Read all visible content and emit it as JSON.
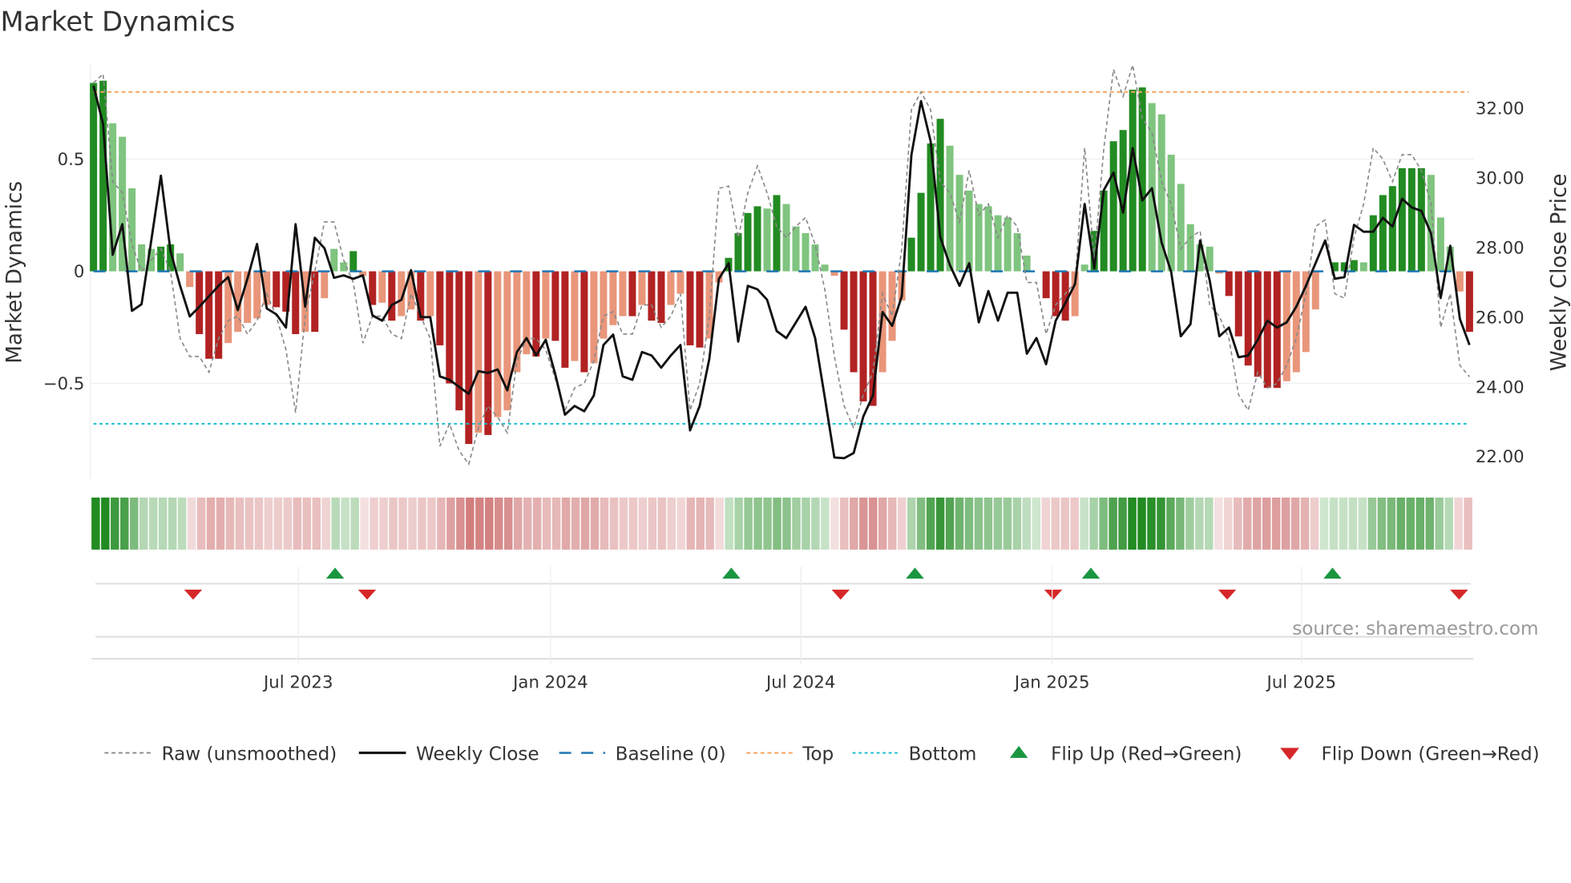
{
  "chart_data": {
    "type": "bar",
    "title": "Market Dynamics",
    "ylabel_left": "Market Dynamics",
    "ylabel_right": "Weekly Close Price",
    "ylim_left": [
      -0.93,
      0.93
    ],
    "ylim_right": [
      21.4,
      33.2
    ],
    "left_ticks": [
      {
        "v": 0.5,
        "label": "0.5"
      },
      {
        "v": 0,
        "label": "0"
      },
      {
        "v": -0.5,
        "label": "−0.5"
      }
    ],
    "right_ticks": [
      {
        "v": 32,
        "label": "32.00"
      },
      {
        "v": 30,
        "label": "30.00"
      },
      {
        "v": 28,
        "label": "28.00"
      },
      {
        "v": 26,
        "label": "26.00"
      },
      {
        "v": 24,
        "label": "24.00"
      },
      {
        "v": 22,
        "label": "22.00"
      }
    ],
    "x_start_week": 0,
    "x_ticks": [
      {
        "week": 21.2,
        "label": "Jul 2023"
      },
      {
        "week": 47.3,
        "label": "Jan 2024"
      },
      {
        "week": 73.2,
        "label": "Jul 2024"
      },
      {
        "week": 99.2,
        "label": "Jan 2025"
      },
      {
        "week": 125,
        "label": "Jul 2025"
      }
    ],
    "top_level": 0.8,
    "bottom_level": -0.68,
    "baseline": 0,
    "dynamics": [
      0.84,
      0.85,
      0.66,
      0.6,
      0.37,
      0.12,
      0.1,
      0.11,
      0.12,
      0.08,
      -0.07,
      -0.28,
      -0.39,
      -0.39,
      -0.32,
      -0.27,
      -0.23,
      -0.21,
      -0.15,
      -0.16,
      -0.18,
      -0.28,
      -0.27,
      -0.27,
      -0.12,
      0.1,
      0.04,
      0.09,
      -0.02,
      -0.15,
      -0.14,
      -0.22,
      -0.2,
      -0.17,
      -0.22,
      -0.2,
      -0.33,
      -0.5,
      -0.62,
      -0.77,
      -0.72,
      -0.73,
      -0.65,
      -0.62,
      -0.45,
      -0.37,
      -0.38,
      -0.3,
      -0.31,
      -0.43,
      -0.4,
      -0.45,
      -0.41,
      -0.3,
      -0.24,
      -0.2,
      -0.2,
      -0.15,
      -0.22,
      -0.23,
      -0.15,
      -0.1,
      -0.33,
      -0.34,
      -0.3,
      -0.05,
      0.06,
      0.17,
      0.26,
      0.29,
      0.28,
      0.34,
      0.3,
      0.2,
      0.17,
      0.12,
      0.03,
      -0.02,
      -0.26,
      -0.45,
      -0.58,
      -0.6,
      -0.45,
      -0.31,
      -0.13,
      0.15,
      0.35,
      0.57,
      0.68,
      0.56,
      0.43,
      0.36,
      0.3,
      0.29,
      0.25,
      0.24,
      0.17,
      0.07,
      0.0,
      -0.12,
      -0.2,
      -0.22,
      -0.2,
      0.03,
      0.18,
      0.36,
      0.58,
      0.63,
      0.81,
      0.82,
      0.75,
      0.7,
      0.52,
      0.39,
      0.21,
      0.12,
      0.11,
      -0.01,
      -0.11,
      -0.29,
      -0.42,
      -0.47,
      -0.52,
      -0.52,
      -0.49,
      -0.45,
      -0.36,
      -0.17,
      0.0,
      0.04,
      0.04,
      0.05,
      0.04,
      0.25,
      0.34,
      0.38,
      0.46,
      0.46,
      0.46,
      0.43,
      0.24,
      0.11,
      -0.09,
      -0.27
    ],
    "raw": [
      0.84,
      0.88,
      0.4,
      0.35,
      0.12,
      0.0,
      0.05,
      0.1,
      0.0,
      -0.3,
      -0.38,
      -0.38,
      -0.45,
      -0.3,
      -0.22,
      -0.2,
      -0.28,
      -0.22,
      -0.1,
      -0.2,
      -0.35,
      -0.63,
      -0.2,
      0.0,
      0.22,
      0.22,
      0.05,
      -0.05,
      -0.32,
      -0.2,
      -0.2,
      -0.28,
      -0.3,
      -0.1,
      -0.2,
      -0.3,
      -0.78,
      -0.68,
      -0.8,
      -0.86,
      -0.7,
      -0.6,
      -0.65,
      -0.72,
      -0.4,
      -0.3,
      -0.3,
      -0.35,
      -0.48,
      -0.62,
      -0.52,
      -0.5,
      -0.4,
      -0.2,
      -0.18,
      -0.28,
      -0.28,
      -0.15,
      -0.15,
      -0.25,
      -0.2,
      -0.1,
      -0.62,
      -0.5,
      -0.2,
      0.37,
      0.38,
      0.15,
      0.35,
      0.47,
      0.35,
      0.2,
      0.15,
      0.2,
      0.24,
      0.12,
      -0.08,
      -0.38,
      -0.6,
      -0.7,
      -0.55,
      -0.45,
      -0.1,
      -0.2,
      0.1,
      0.72,
      0.8,
      0.72,
      0.4,
      0.35,
      0.22,
      0.45,
      0.25,
      0.3,
      0.15,
      0.25,
      0.2,
      -0.05,
      -0.05,
      -0.28,
      -0.15,
      -0.1,
      -0.05,
      0.55,
      0.05,
      0.55,
      0.9,
      0.78,
      0.92,
      0.68,
      0.62,
      0.4,
      0.3,
      0.1,
      0.15,
      0.18,
      -0.15,
      -0.2,
      -0.3,
      -0.55,
      -0.62,
      -0.45,
      -0.52,
      -0.5,
      -0.42,
      -0.3,
      -0.1,
      0.2,
      0.23,
      -0.1,
      -0.12,
      0.15,
      0.3,
      0.55,
      0.5,
      0.4,
      0.52,
      0.52,
      0.45,
      0.3,
      -0.25,
      -0.1,
      -0.42,
      -0.47
    ],
    "weekly_close": [
      32.64,
      31.54,
      27.79,
      28.67,
      26.18,
      26.37,
      28.2,
      30.06,
      27.9,
      26.9,
      26.02,
      26.3,
      26.6,
      26.9,
      27.15,
      26.2,
      27.1,
      28.1,
      26.25,
      26.08,
      25.7,
      28.67,
      26.3,
      28.28,
      27.98,
      27.13,
      27.2,
      27.1,
      27.2,
      26.05,
      25.9,
      26.35,
      26.5,
      27.35,
      26.0,
      26.0,
      24.3,
      24.2,
      24.0,
      23.8,
      24.45,
      24.4,
      24.5,
      23.9,
      25.0,
      25.4,
      24.9,
      25.35,
      24.35,
      23.2,
      23.45,
      23.3,
      23.75,
      25.2,
      25.5,
      24.3,
      24.2,
      25.0,
      24.9,
      24.55,
      24.9,
      25.2,
      22.75,
      23.45,
      24.8,
      27.1,
      27.55,
      25.3,
      26.9,
      26.8,
      26.5,
      25.6,
      25.4,
      25.85,
      26.3,
      25.4,
      23.7,
      21.97,
      21.95,
      22.1,
      23.15,
      23.75,
      26.15,
      25.75,
      26.6,
      30.65,
      32.2,
      31.05,
      28.3,
      27.5,
      26.9,
      27.55,
      25.85,
      26.75,
      25.9,
      26.7,
      26.7,
      24.95,
      25.4,
      24.65,
      25.9,
      26.4,
      26.95,
      29.25,
      27.4,
      29.65,
      30.15,
      29.0,
      30.85,
      29.35,
      29.7,
      28.15,
      27.3,
      25.45,
      25.8,
      28.2,
      27.05,
      25.45,
      25.7,
      24.85,
      24.9,
      25.35,
      25.9,
      25.7,
      25.85,
      26.3,
      26.9,
      27.55,
      28.2,
      27.1,
      27.15,
      28.65,
      28.45,
      28.45,
      28.85,
      28.6,
      29.4,
      29.15,
      29.05,
      28.4,
      26.55,
      28.05,
      25.95,
      25.2
    ],
    "flip_up_weeks": [
      25,
      66,
      85,
      103,
      128
    ],
    "flip_down_weeks": [
      10,
      28,
      77,
      99,
      117,
      141
    ],
    "legend": [
      "Raw (unsmoothed)",
      "Weekly Close",
      "Baseline (0)",
      "Top",
      "Bottom",
      "Flip Up (Red→Green)",
      "Flip Down (Green→Red)"
    ],
    "legend_placement": "bottom",
    "source": "source: sharemaestro.com",
    "colors": {
      "green_strong": "#228b22",
      "green_weak": "#7fc47f",
      "red_strong": "#b22222",
      "red_weak": "#e9967a",
      "baseline": "#1f77b4",
      "top": "#f4a460",
      "bottom": "#17becf",
      "close": "#111111",
      "raw": "#888888",
      "flip_up": "#1a9641",
      "flip_down": "#d62728"
    }
  }
}
